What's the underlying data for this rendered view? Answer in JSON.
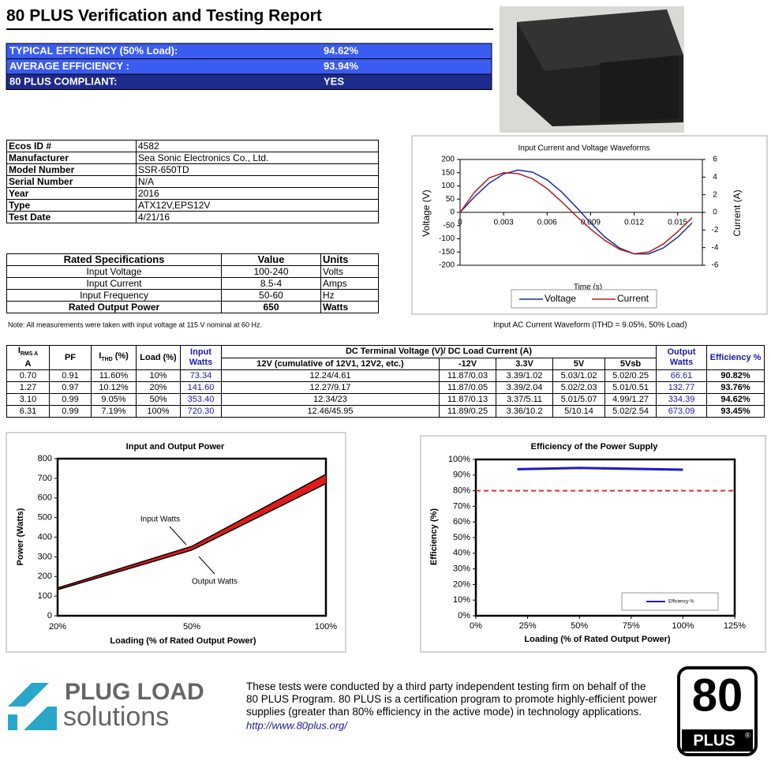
{
  "header": {
    "title": "80 PLUS Verification and Testing Report"
  },
  "summary": {
    "rows": [
      [
        "TYPICAL EFFICIENCY (50% Load):",
        "94.62%"
      ],
      [
        "AVERAGE EFFICIENCY :",
        "93.94%"
      ],
      [
        "80 PLUS COMPLIANT:",
        "YES"
      ]
    ]
  },
  "info": {
    "rows": [
      [
        "Ecos ID #",
        "4582"
      ],
      [
        "Manufacturer",
        "Sea Sonic Electronics Co., Ltd."
      ],
      [
        "Model Number",
        "SSR-650TD"
      ],
      [
        "Serial Number",
        "N/A"
      ],
      [
        "Year",
        "2016"
      ],
      [
        "Type",
        "ATX12V,EPS12V"
      ],
      [
        "Test Date",
        "4/21/16"
      ]
    ]
  },
  "rated": {
    "header": [
      "Rated Specifications",
      "Value",
      "Units"
    ],
    "rows": [
      [
        "Input Voltage",
        "100-240",
        "Volts"
      ],
      [
        "Input Current",
        "8.5-4",
        "Amps"
      ],
      [
        "Input Frequency",
        "50-60",
        "Hz"
      ],
      [
        "Rated Output Power",
        "650",
        "Watts"
      ]
    ]
  },
  "note": "Note: All measurements were taken with input voltage at 115 V nominal at 60 Hz.",
  "waveform_caption": "Input AC Current Waveform (ITHD = 9.05%, 50% Load)",
  "test": {
    "header": {
      "irms": "I",
      "irms_sub": "RMS A",
      "irms_unit": "A",
      "pf": "PF",
      "ithd": "I",
      "ithd_sub": "THD",
      "ithd_unit": "(%)",
      "load": "Load (%)",
      "input_watts": "Input Watts",
      "dc_title": "DC Terminal Voltage (V)/ DC Load Current (A)",
      "dc_cols": [
        "12V (cumulative of 12V1, 12V2, etc.)",
        "-12V",
        "3.3V",
        "5V",
        "5Vsb"
      ],
      "output_watts": "Output Watts",
      "efficiency": "Efficiency %"
    },
    "rows": [
      [
        "0.70",
        "0.91",
        "11.60%",
        "10%",
        "73.34",
        "12.24/4.61",
        "11.87/0.03",
        "3.39/1.02",
        "5.03/1.02",
        "5.02/0.25",
        "66.61",
        "90.82%"
      ],
      [
        "1.27",
        "0.97",
        "10.12%",
        "20%",
        "141.60",
        "12.27/9.17",
        "11.87/0.05",
        "3.39/2.04",
        "5.02/2.03",
        "5.01/0.51",
        "132.77",
        "93.76%"
      ],
      [
        "3.10",
        "0.99",
        "9.05%",
        "50%",
        "353.40",
        "12.34/23",
        "11.87/0.13",
        "3.37/5.11",
        "5.01/5.07",
        "4.99/1.27",
        "334.39",
        "94.62%"
      ],
      [
        "6.31",
        "0.99",
        "7.19%",
        "100%",
        "720.30",
        "12.46/45.95",
        "11.89/0.25",
        "3.36/10.2",
        "5/10.14",
        "5.02/2.54",
        "673.09",
        "93.45%"
      ]
    ]
  },
  "chart_data": [
    {
      "type": "line",
      "title": "Input Current and Voltage Waveforms",
      "x_label": "Time (s)",
      "y_label": "Voltage (V)",
      "y2_label": "Current (A)",
      "x": [
        0,
        0.001,
        0.002,
        0.003,
        0.004,
        0.005,
        0.006,
        0.007,
        0.008,
        0.009,
        0.01,
        0.011,
        0.012,
        0.013,
        0.014,
        0.015,
        0.016
      ],
      "xlim": [
        0,
        0.0167
      ],
      "xticks": [
        0,
        0.003,
        0.006,
        0.009,
        0.012,
        0.015
      ],
      "ylim": [
        -200,
        200
      ],
      "yticks": [
        -200,
        -150,
        -100,
        -50,
        0,
        50,
        100,
        150,
        200
      ],
      "y2lim": [
        -6,
        6
      ],
      "y2ticks": [
        -6,
        -4,
        -2,
        0,
        2,
        4,
        6
      ],
      "legend": "bottom",
      "series": [
        {
          "name": "Voltage",
          "color": "#1f2f9a",
          "values": [
            0,
            59,
            110,
            145,
            160,
            152,
            123,
            77,
            20,
            -40,
            -94,
            -135,
            -157,
            -157,
            -135,
            -94,
            -40
          ]
        },
        {
          "name": "Current",
          "color": "#b02020",
          "axis": "y2",
          "values": [
            0,
            2.3,
            3.9,
            4.5,
            4.4,
            3.8,
            2.7,
            1.2,
            -0.4,
            -1.9,
            -3.2,
            -4.2,
            -4.7,
            -4.5,
            -3.6,
            -2.2,
            -0.6
          ]
        }
      ]
    },
    {
      "type": "band",
      "title": "Input and Output Power",
      "x_label": "Loading (% of Rated Output Power)",
      "y_label": "Power (Watts)",
      "categories": [
        "20%",
        "50%",
        "100%"
      ],
      "ylim": [
        0,
        800
      ],
      "yticks": [
        0,
        100,
        200,
        300,
        400,
        500,
        600,
        700,
        800
      ],
      "fill_color": "#e31b1b",
      "series": [
        {
          "name": "Input Watts",
          "color": "#000000",
          "values": [
            141.6,
            353.4,
            720.3
          ]
        },
        {
          "name": "Output Watts",
          "color": "#000000",
          "values": [
            132.77,
            334.39,
            673.09
          ]
        }
      ]
    },
    {
      "type": "line",
      "title": "Efficiency of the Power Supply",
      "x_label": "Loading (% of Rated Output Power)",
      "y_label": "Efficiency (%)",
      "x": [
        20,
        50,
        100
      ],
      "xlim": [
        0,
        125
      ],
      "xticks": [
        {
          "value": 0,
          "label": "0%"
        },
        {
          "value": 25,
          "label": "25%"
        },
        {
          "value": 50,
          "label": "50%"
        },
        {
          "value": 75,
          "label": "75%"
        },
        {
          "value": 100,
          "label": "100%"
        },
        {
          "value": 125,
          "label": "125%"
        }
      ],
      "ylim": [
        0,
        100
      ],
      "yticks": [
        {
          "value": 0,
          "label": "0%"
        },
        {
          "value": 10,
          "label": "10%"
        },
        {
          "value": 20,
          "label": "20%"
        },
        {
          "value": 30,
          "label": "30%"
        },
        {
          "value": 40,
          "label": "40%"
        },
        {
          "value": 50,
          "label": "50%"
        },
        {
          "value": 60,
          "label": "60%"
        },
        {
          "value": 70,
          "label": "70%"
        },
        {
          "value": 80,
          "label": "80%"
        },
        {
          "value": 90,
          "label": "90%"
        },
        {
          "value": 100,
          "label": "100%"
        }
      ],
      "reference_line": {
        "value": 80,
        "color": "#e03030"
      },
      "legend": "lower right",
      "series": [
        {
          "name": "Efficiency %",
          "color": "#1c1cc8",
          "values": [
            93.76,
            94.62,
            93.45
          ]
        }
      ]
    }
  ],
  "footer": {
    "logo_top": "PLUG LOAD",
    "logo_bottom": "solutions",
    "lines": [
      "These tests were conducted by a third party independent testing firm on behalf of the",
      "80 PLUS Program. 80 PLUS is a certification program to promote highly-efficient power",
      "supplies (greater than 80% efficiency in the active mode) in technology applications."
    ],
    "url": "http://www.80plus.org/",
    "badge_number": "80",
    "badge_text": "PLUS",
    "badge_mark": "®"
  }
}
